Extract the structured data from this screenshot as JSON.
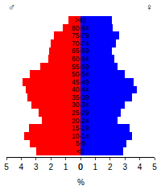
{
  "chart_data": {
    "type": "bar",
    "orientation": "horizontal",
    "xlabel": "%",
    "categories": [
      "<5",
      "5-9",
      "10-14",
      "15-19",
      "20-24",
      "25-29",
      "30-34",
      "35-39",
      "40-44",
      "45-49",
      "50-54",
      "55-59",
      "60-64",
      "65-69",
      "70-74",
      "75-79",
      "80-84",
      ">85"
    ],
    "series": [
      {
        "name": "♂",
        "color": "#ff0000",
        "values": [
          3.0,
          3.4,
          3.8,
          3.5,
          2.6,
          2.8,
          3.3,
          3.6,
          3.7,
          3.9,
          3.4,
          2.7,
          2.2,
          2.1,
          2.0,
          1.8,
          1.2,
          0.8
        ]
      },
      {
        "name": "♀",
        "color": "#0000ff",
        "values": [
          2.9,
          3.1,
          3.5,
          3.3,
          2.5,
          2.7,
          3.0,
          3.5,
          3.8,
          3.6,
          3.0,
          2.5,
          2.3,
          2.1,
          2.4,
          2.6,
          2.2,
          2.1
        ]
      }
    ],
    "xlim": [
      0,
      5
    ],
    "xticks": [
      0,
      1,
      2,
      3,
      4,
      5
    ],
    "grid": false
  }
}
